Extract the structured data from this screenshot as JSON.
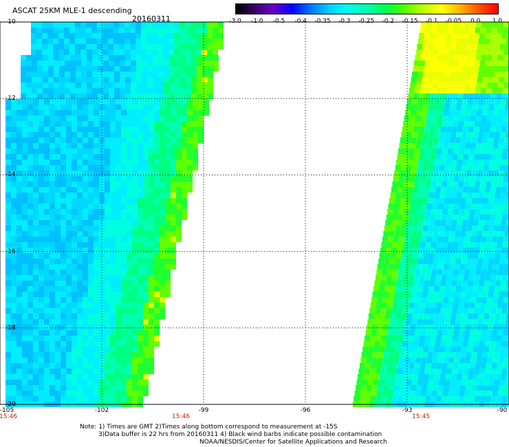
{
  "header": {
    "title": "ASCAT 25KM MLE-1 descending",
    "date": "20160311"
  },
  "colorbar": {
    "labels": [
      "-3.0",
      "-1.0",
      "-0.5",
      "-0.4",
      "-0.35",
      "-0.3",
      "-0.25",
      "-0.2",
      "-0.15",
      "-0.1",
      "-0.05",
      "0.0",
      "1.0"
    ],
    "colors": [
      "#000000",
      "#3a0066",
      "#6a00c8",
      "#0000ff",
      "#0078ff",
      "#00d0ff",
      "#00ffea",
      "#00ffb0",
      "#00ff50",
      "#50ff00",
      "#c0ff00",
      "#ffff00",
      "#ffb000",
      "#ff5000",
      "#ff0000"
    ]
  },
  "map": {
    "lat_labels": [
      "-10",
      "-12",
      "-14",
      "-16",
      "-18",
      "-20"
    ],
    "lon_labels": [
      "-105",
      "-102",
      "-99",
      "-96",
      "-93",
      "-90"
    ],
    "lat_range": [
      -20,
      -10
    ],
    "lon_range": [
      -105,
      -90
    ],
    "pass_times": [
      "15:46",
      "15:46",
      "15:45"
    ],
    "pass_time_lons": [
      -105,
      -99,
      -93
    ]
  },
  "notes": {
    "line1": "Note: 1) Times are GMT 2)Times along bottom correspond to measurement at -15S",
    "line2": "3)Data buffer is 22 hrs from 20160311 4) Black wind barbs indicate possible contamination",
    "line3": "NOAA/NESDIS/Center for Satellite Applications and Research"
  }
}
